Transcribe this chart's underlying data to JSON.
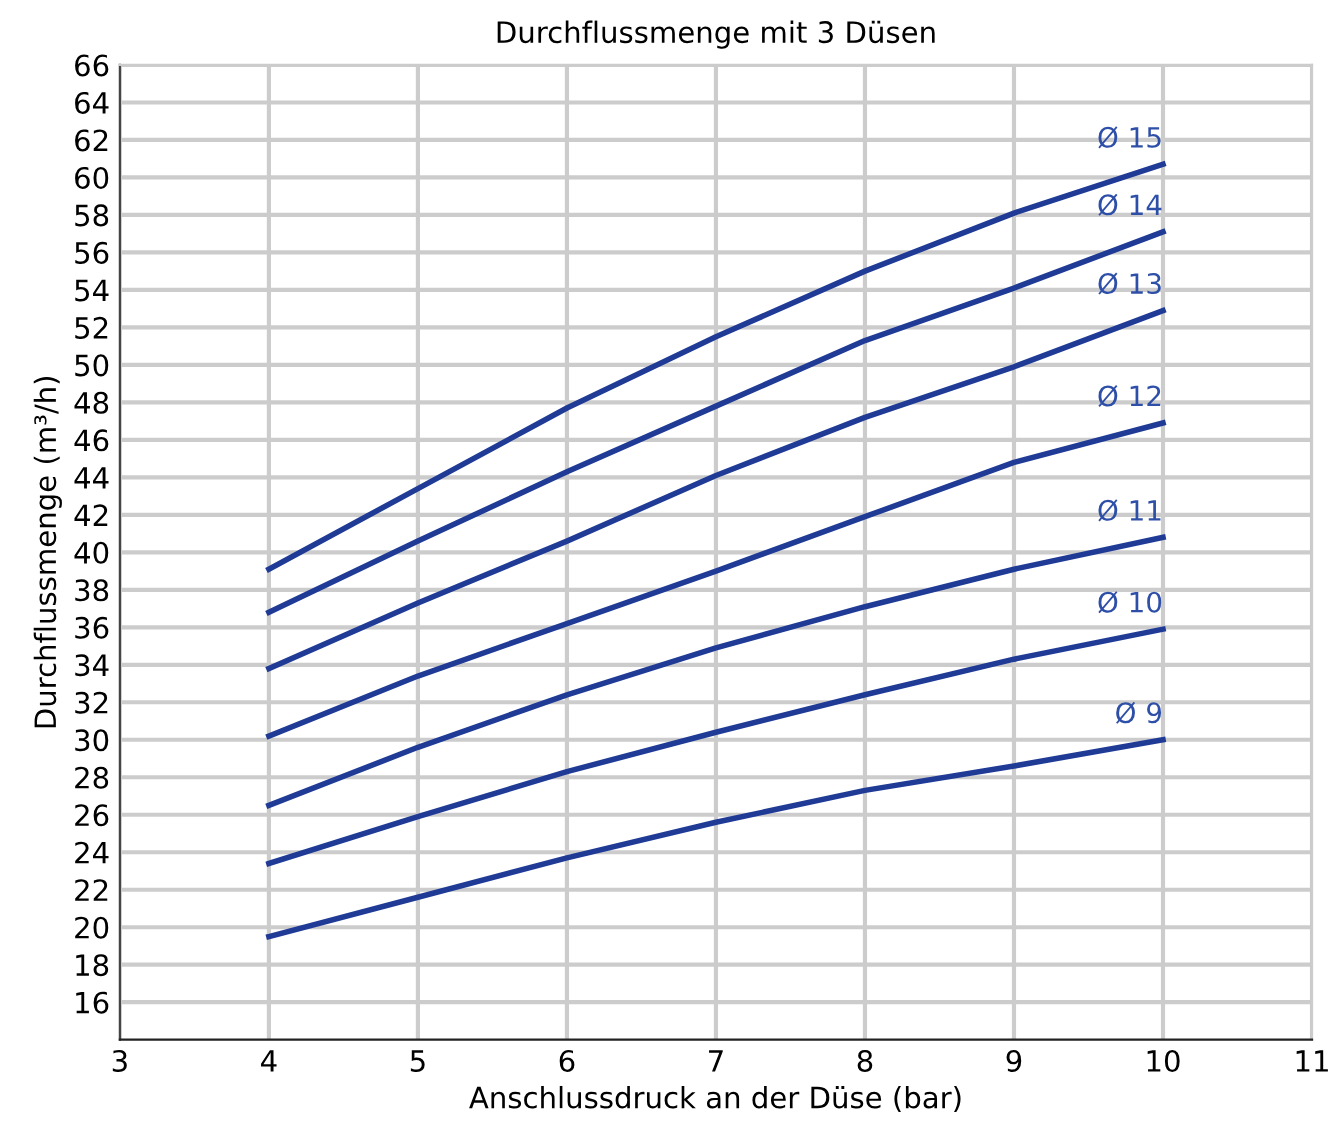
{
  "chart_data": {
    "type": "line",
    "title": "Durchflussmenge mit 3 Düsen",
    "xlabel": "Anschlussdruck an der Düse (bar)",
    "ylabel": "Durchflussmenge (m³/h)",
    "x": [
      4,
      5,
      6,
      7,
      8,
      9,
      10
    ],
    "series": [
      {
        "name": "Ø 15",
        "color": "#1f3b96",
        "values": [
          39.1,
          43.4,
          47.7,
          51.5,
          55.0,
          58.1,
          60.7
        ]
      },
      {
        "name": "Ø 14",
        "color": "#1f3b96",
        "values": [
          36.8,
          40.6,
          44.3,
          47.8,
          51.3,
          54.1,
          57.1
        ]
      },
      {
        "name": "Ø 13",
        "color": "#1f3b96",
        "values": [
          33.8,
          37.3,
          40.6,
          44.1,
          47.2,
          49.9,
          52.9
        ]
      },
      {
        "name": "Ø 12",
        "color": "#1f3b96",
        "values": [
          30.2,
          33.4,
          36.2,
          39.0,
          41.9,
          44.8,
          46.9
        ]
      },
      {
        "name": "Ø 11",
        "color": "#1f3b96",
        "values": [
          26.5,
          29.6,
          32.4,
          34.9,
          37.1,
          39.1,
          40.8
        ]
      },
      {
        "name": "Ø 10",
        "color": "#1f3b96",
        "values": [
          23.4,
          25.9,
          28.3,
          30.4,
          32.4,
          34.3,
          35.9
        ]
      },
      {
        "name": "Ø 9",
        "color": "#1f3b96",
        "values": [
          19.5,
          21.6,
          23.7,
          25.6,
          27.3,
          28.6,
          30.0
        ]
      }
    ],
    "xlim": [
      3,
      11
    ],
    "xticks": [
      3,
      4,
      5,
      6,
      7,
      8,
      9,
      10,
      11
    ],
    "ylim": [
      14,
      66
    ],
    "yticks": [
      16,
      18,
      20,
      22,
      24,
      26,
      28,
      30,
      32,
      34,
      36,
      38,
      40,
      42,
      44,
      46,
      48,
      50,
      52,
      54,
      56,
      58,
      60,
      62,
      64,
      66
    ],
    "grid": true,
    "legend": false,
    "marker": "none",
    "line_style": "solid"
  }
}
